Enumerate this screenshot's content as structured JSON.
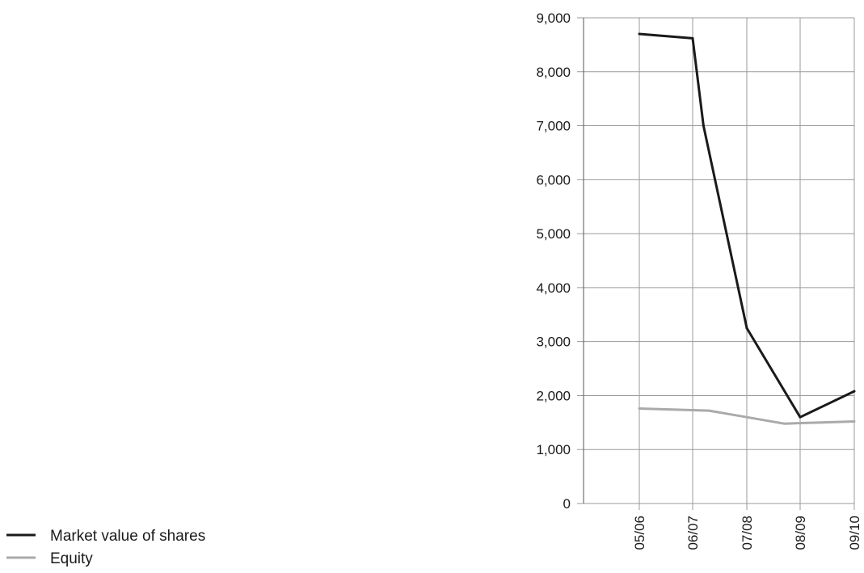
{
  "chart_data": {
    "type": "line",
    "title": "",
    "xlabel": "",
    "ylabel": "",
    "categories": [
      "05/06",
      "06/07",
      "07/08",
      "08/09",
      "09/10"
    ],
    "y_ticks": [
      "0",
      "1,000",
      "2,000",
      "3,000",
      "4,000",
      "5,000",
      "6,000",
      "7,000",
      "8,000",
      "9,000"
    ],
    "ylim": [
      0,
      9000
    ],
    "grid": true,
    "legend_position": "bottom-left",
    "series": [
      {
        "name": "Market value of shares",
        "color": "#1a1a1a",
        "points": [
          {
            "x": 0.0,
            "y": 8700
          },
          {
            "x": 1.0,
            "y": 8620
          },
          {
            "x": 1.2,
            "y": 7000
          },
          {
            "x": 2.0,
            "y": 3250
          },
          {
            "x": 3.0,
            "y": 1600
          },
          {
            "x": 4.0,
            "y": 2080
          }
        ]
      },
      {
        "name": "Equity",
        "color": "#aaaaaa",
        "points": [
          {
            "x": 0.0,
            "y": 1760
          },
          {
            "x": 1.0,
            "y": 1730
          },
          {
            "x": 1.3,
            "y": 1720
          },
          {
            "x": 2.0,
            "y": 1600
          },
          {
            "x": 2.7,
            "y": 1480
          },
          {
            "x": 3.0,
            "y": 1490
          },
          {
            "x": 4.0,
            "y": 1520
          }
        ]
      }
    ]
  }
}
